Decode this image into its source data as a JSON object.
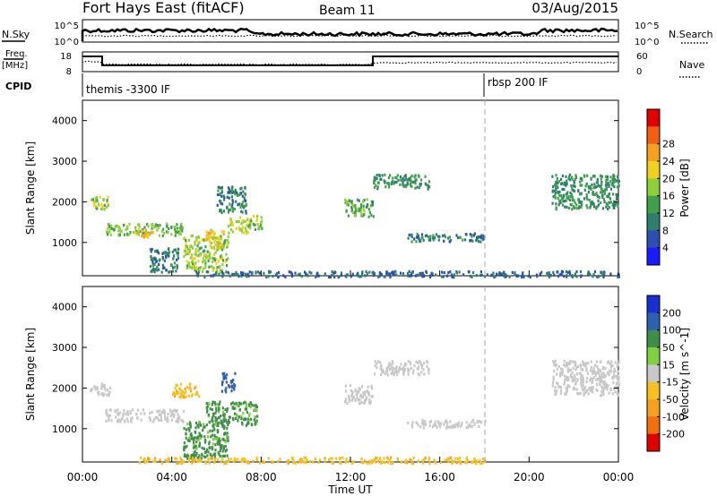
{
  "header": {
    "title": "Fort Hays East (fitACF)",
    "beam": "Beam 11",
    "date": "03/Aug/2015"
  },
  "top_panel": {
    "nsky_label": "N.Sky",
    "nsearch_label": "N.Search",
    "left_ticks": [
      "10^5",
      "10^0"
    ],
    "right_ticks": [
      "10^5",
      "10^0"
    ],
    "freq_label": "Freq.",
    "freq_unit": "[MHz]",
    "freq_ticks": [
      "18",
      "8"
    ],
    "nave_label": "Nave",
    "nave_ticks": [
      "60",
      "0"
    ],
    "cpid_label": "CPID",
    "cpid_segments": [
      {
        "name": "themis -3300 IF",
        "start_hour": 0
      },
      {
        "name": "rbsp 200 IF",
        "start_hour": 18
      }
    ]
  },
  "chart_data": [
    {
      "type": "heatmap",
      "panel": "power",
      "ylabel": "Slant Range [km]",
      "xlabel": "",
      "x_range_hours": [
        0,
        24
      ],
      "ylim": [
        180,
        4500
      ],
      "y_ticks": [
        1000,
        2000,
        3000,
        4000
      ],
      "colorbar": {
        "label": "Power [dB]",
        "ticks": [
          "4",
          "8",
          "12",
          "16",
          "20",
          "24",
          "28"
        ],
        "colors": [
          "#1a1aff",
          "#2c4fb0",
          "#2f7f6e",
          "#3f9f4a",
          "#8fcf3a",
          "#f0d020",
          "#f5a020",
          "#f06010",
          "#e00000"
        ]
      },
      "regions": [
        {
          "t0": 0.3,
          "t1": 1.2,
          "r0": 1850,
          "r1": 2150,
          "value": 18
        },
        {
          "t0": 1.0,
          "t1": 4.5,
          "r0": 1200,
          "r1": 1500,
          "value": 16
        },
        {
          "t0": 2.3,
          "t1": 3.2,
          "r0": 1150,
          "r1": 1350,
          "value": 24
        },
        {
          "t0": 3.0,
          "t1": 4.3,
          "r0": 300,
          "r1": 900,
          "value": 10
        },
        {
          "t0": 4.5,
          "t1": 6.5,
          "r0": 300,
          "r1": 1200,
          "value": 18
        },
        {
          "t0": 5.5,
          "t1": 6.3,
          "r0": 900,
          "r1": 1350,
          "value": 22
        },
        {
          "t0": 6.5,
          "t1": 7.5,
          "r0": 1250,
          "r1": 1650,
          "value": 20
        },
        {
          "t0": 7.3,
          "t1": 8.0,
          "r0": 1350,
          "r1": 1700,
          "value": 17
        },
        {
          "t0": 6.0,
          "t1": 7.3,
          "r0": 1750,
          "r1": 2400,
          "value": 10
        },
        {
          "t0": 11.7,
          "t1": 13.0,
          "r0": 1650,
          "r1": 2100,
          "value": 14
        },
        {
          "t0": 13.0,
          "t1": 15.5,
          "r0": 2350,
          "r1": 2700,
          "value": 12
        },
        {
          "t0": 14.5,
          "t1": 18.0,
          "r0": 1050,
          "r1": 1250,
          "value": 10
        },
        {
          "t0": 21.0,
          "t1": 24.0,
          "r0": 1850,
          "r1": 2700,
          "value": 12
        },
        {
          "t0": 5.0,
          "t1": 24.0,
          "r0": 180,
          "r1": 320,
          "value": 8
        }
      ]
    },
    {
      "type": "heatmap",
      "panel": "velocity",
      "ylabel": "Slant Range [km]",
      "xlabel": "Time UT",
      "x_range_hours": [
        0,
        24
      ],
      "x_ticks": [
        "00:00",
        "04:00",
        "08:00",
        "12:00",
        "16:00",
        "20:00",
        "00:00"
      ],
      "ylim": [
        180,
        4500
      ],
      "y_ticks": [
        1000,
        2000,
        3000,
        4000
      ],
      "colorbar": {
        "label": "Velocity [m s^-1]",
        "ticks": [
          "200",
          "100",
          "50",
          "15",
          "-15",
          "-50",
          "-100",
          "-200"
        ],
        "colors": [
          "#1a2fd0",
          "#2f5fb0",
          "#3f8f4a",
          "#7fd040",
          "#c8c8c8",
          "#f5c020",
          "#f5a020",
          "#f07010",
          "#e00000"
        ]
      },
      "regions": [
        {
          "t0": 0.3,
          "t1": 1.2,
          "r0": 1850,
          "r1": 2150,
          "value": 0
        },
        {
          "t0": 1.0,
          "t1": 4.5,
          "r0": 1200,
          "r1": 1500,
          "value": 0
        },
        {
          "t0": 4.5,
          "t1": 6.5,
          "r0": 300,
          "r1": 1200,
          "value": 60
        },
        {
          "t0": 5.5,
          "t1": 7.8,
          "r0": 1100,
          "r1": 1700,
          "value": 60
        },
        {
          "t0": 6.2,
          "t1": 6.8,
          "r0": 1900,
          "r1": 2400,
          "value": 180
        },
        {
          "t0": 4.0,
          "t1": 5.2,
          "r0": 1800,
          "r1": 2150,
          "value": -40
        },
        {
          "t0": 11.7,
          "t1": 13.0,
          "r0": 1650,
          "r1": 2100,
          "value": 0
        },
        {
          "t0": 13.0,
          "t1": 15.5,
          "r0": 2350,
          "r1": 2700,
          "value": 0
        },
        {
          "t0": 14.5,
          "t1": 18.0,
          "r0": 1050,
          "r1": 1250,
          "value": 0
        },
        {
          "t0": 21.0,
          "t1": 24.0,
          "r0": 1850,
          "r1": 2700,
          "value": 0
        },
        {
          "t0": 2.5,
          "t1": 18.0,
          "r0": 180,
          "r1": 320,
          "value": -40
        }
      ]
    }
  ]
}
